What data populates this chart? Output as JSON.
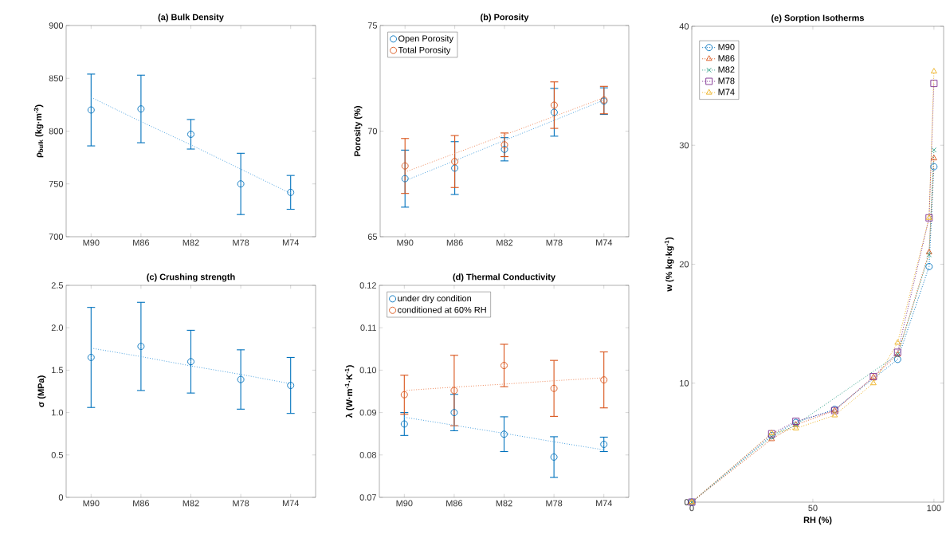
{
  "chart_data": [
    {
      "type": "scatter",
      "title": "(a) Bulk Density",
      "ylabel": "ρ$_{bulk}$ (kg·m$^{-3}$)",
      "categories": [
        "M90",
        "M86",
        "M82",
        "M78",
        "M74"
      ],
      "marker": "circle",
      "ylim": [
        700,
        900
      ],
      "yticks": [
        700,
        750,
        800,
        850,
        900
      ],
      "series": [
        {
          "color": "#0072bd",
          "values": [
            820,
            821,
            797,
            750,
            742
          ],
          "errors": [
            34,
            32,
            14,
            29,
            16
          ]
        },
        {
          "type": "line",
          "color": "#4da3e0",
          "marker": "none",
          "line_style": "dotted",
          "values": [
            832,
            809,
            787,
            764,
            741
          ]
        }
      ]
    },
    {
      "type": "scatter",
      "title": "(b) Porosity",
      "ylabel": "Porosity (%)",
      "categories": [
        "M90",
        "M86",
        "M82",
        "M78",
        "M74"
      ],
      "marker": "circle",
      "legend": "top left",
      "ylim": [
        65,
        75
      ],
      "yticks": [
        65,
        70,
        75
      ],
      "series": [
        {
          "name": "Open Porosity",
          "color": "#0072bd",
          "values": [
            67.75,
            68.25,
            69.14,
            70.89,
            71.42
          ],
          "errors": [
            1.35,
            1.25,
            0.55,
            1.13,
            0.63
          ]
        },
        {
          "name": "Total Porosity",
          "color": "#d95319",
          "values": [
            68.35,
            68.56,
            69.35,
            71.23,
            71.47
          ],
          "errors": [
            1.3,
            1.23,
            0.56,
            1.1,
            0.65
          ]
        },
        {
          "type": "line",
          "color": "#4da3e0",
          "marker": "none",
          "line_style": "dotted",
          "values": [
            67.65,
            68.6,
            69.56,
            70.51,
            71.47
          ]
        },
        {
          "type": "line",
          "color": "#f08a5d",
          "marker": "none",
          "line_style": "dotted",
          "values": [
            68.06,
            68.94,
            69.82,
            70.7,
            71.58
          ]
        }
      ]
    },
    {
      "type": "scatter",
      "title": "(c) Crushing strength",
      "ylabel": "σ (MPa)",
      "categories": [
        "M90",
        "M86",
        "M82",
        "M78",
        "M74"
      ],
      "marker": "circle",
      "ylim": [
        0,
        2.5
      ],
      "yticks": [
        0,
        0.5,
        {
          "value": 1,
          "label": "1.0"
        },
        1.5,
        {
          "value": 2,
          "label": "2.0"
        },
        2.5
      ],
      "series": [
        {
          "color": "#0072bd",
          "values": [
            1.65,
            1.78,
            1.6,
            1.39,
            1.32
          ],
          "errors": [
            0.59,
            0.52,
            0.37,
            0.35,
            0.33
          ]
        },
        {
          "type": "line",
          "color": "#4da3e0",
          "marker": "none",
          "line_style": "dotted",
          "values": [
            1.76,
            1.66,
            1.55,
            1.45,
            1.34
          ]
        }
      ]
    },
    {
      "type": "scatter",
      "title": "(d) Thermal Conductivity",
      "ylabel": "λ (W·m$^{-1}$·K$^{-1}$)",
      "categories": [
        "M90",
        "M86",
        "M82",
        "M78",
        "M74"
      ],
      "marker": "circle",
      "legend": "top left",
      "ylim": [
        0.07,
        0.12
      ],
      "yticks": [
        0.07,
        0.08,
        0.09,
        {
          "value": 0.1,
          "label": "0.10"
        },
        0.11,
        0.12
      ],
      "series": [
        {
          "name": "under dry condition",
          "color": "#0072bd",
          "values": [
            0.0873,
            0.09,
            0.0849,
            0.0795,
            0.0825
          ],
          "errors": [
            0.0027,
            0.0043,
            0.0041,
            0.0048,
            0.0017
          ]
        },
        {
          "name": "conditioned at 60% RH",
          "color": "#d95319",
          "values": [
            0.0942,
            0.0952,
            0.1011,
            0.0957,
            0.0977
          ],
          "errors": [
            0.0046,
            0.0083,
            0.005,
            0.0066,
            0.0066
          ]
        },
        {
          "type": "line",
          "color": "#4da3e0",
          "marker": "none",
          "line_style": "dotted",
          "values": [
            0.0889,
            0.087,
            0.0851,
            0.0831,
            0.0812
          ]
        },
        {
          "type": "line",
          "color": "#f08a5d",
          "marker": "none",
          "line_style": "dotted",
          "values": [
            0.0952,
            0.096,
            0.0967,
            0.0975,
            0.0982
          ]
        }
      ]
    },
    {
      "type": "line",
      "title": "(e) Sorption Isotherms",
      "xlabel": "RH (%)",
      "ylabel": "w (% kg·kg$^{-1}$)",
      "x": [
        0,
        33,
        43,
        59,
        75,
        85,
        98,
        100
      ],
      "line_style": "dotted",
      "legend": "top left",
      "xlim": [
        0,
        104
      ],
      "xticks": [
        0,
        50,
        100
      ],
      "ylim": [
        0,
        40
      ],
      "yticks": [
        0,
        10,
        20,
        30,
        40
      ],
      "series": [
        {
          "name": "M90",
          "color": "#0072bd",
          "marker": "circle",
          "values": [
            0,
            5.6,
            6.7,
            7.8,
            null,
            12.0,
            19.8,
            28.2
          ]
        },
        {
          "name": "M86",
          "color": "#d95319",
          "marker": "triangle",
          "values": [
            0,
            5.3,
            6.5,
            7.7,
            10.5,
            12.4,
            21.0,
            28.9
          ]
        },
        {
          "name": "M82",
          "color": "#2e9f87",
          "marker": "cross",
          "values": [
            0,
            5.5,
            6.5,
            null,
            null,
            12.4,
            20.8,
            29.6
          ]
        },
        {
          "name": "M78",
          "color": "#7e2f8e",
          "marker": "square",
          "values": [
            0,
            5.75,
            6.8,
            7.7,
            10.55,
            12.6,
            23.9,
            35.2
          ]
        },
        {
          "name": "M74",
          "color": "#edb120",
          "marker": "triangle",
          "values": [
            0,
            5.8,
            6.2,
            7.3,
            10.0,
            13.4,
            23.9,
            36.2
          ]
        }
      ]
    }
  ]
}
